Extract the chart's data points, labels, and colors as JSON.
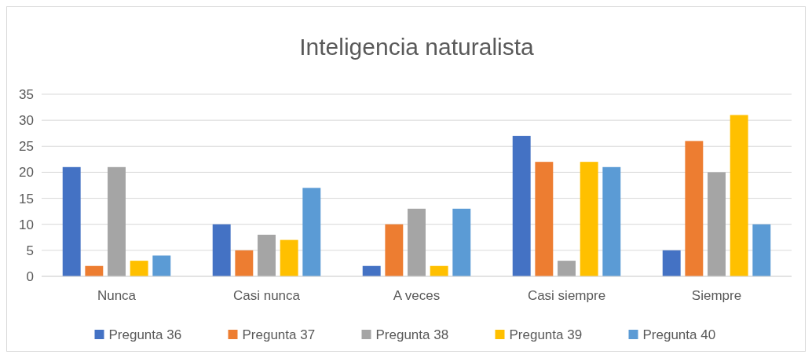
{
  "chart_data": {
    "type": "bar",
    "title": "Inteligencia naturalista",
    "categories": [
      "Nunca",
      "Casi nunca",
      "A veces",
      "Casi siempre",
      "Siempre"
    ],
    "series": [
      {
        "name": "Pregunta 36",
        "color": "#4472c4",
        "values": [
          21,
          10,
          2,
          27,
          5
        ]
      },
      {
        "name": "Pregunta 37",
        "color": "#ed7d31",
        "values": [
          2,
          5,
          10,
          22,
          26
        ]
      },
      {
        "name": "Pregunta 38",
        "color": "#a5a5a5",
        "values": [
          21,
          8,
          13,
          3,
          20
        ]
      },
      {
        "name": "Pregunta 39",
        "color": "#ffc000",
        "values": [
          3,
          7,
          2,
          22,
          31
        ]
      },
      {
        "name": "Pregunta 40",
        "color": "#5b9bd5",
        "values": [
          4,
          17,
          13,
          21,
          10
        ]
      }
    ],
    "ylim": [
      0,
      35
    ],
    "yticks": [
      0,
      5,
      10,
      15,
      20,
      25,
      30,
      35
    ],
    "grid": "y",
    "legend": "bottom"
  }
}
